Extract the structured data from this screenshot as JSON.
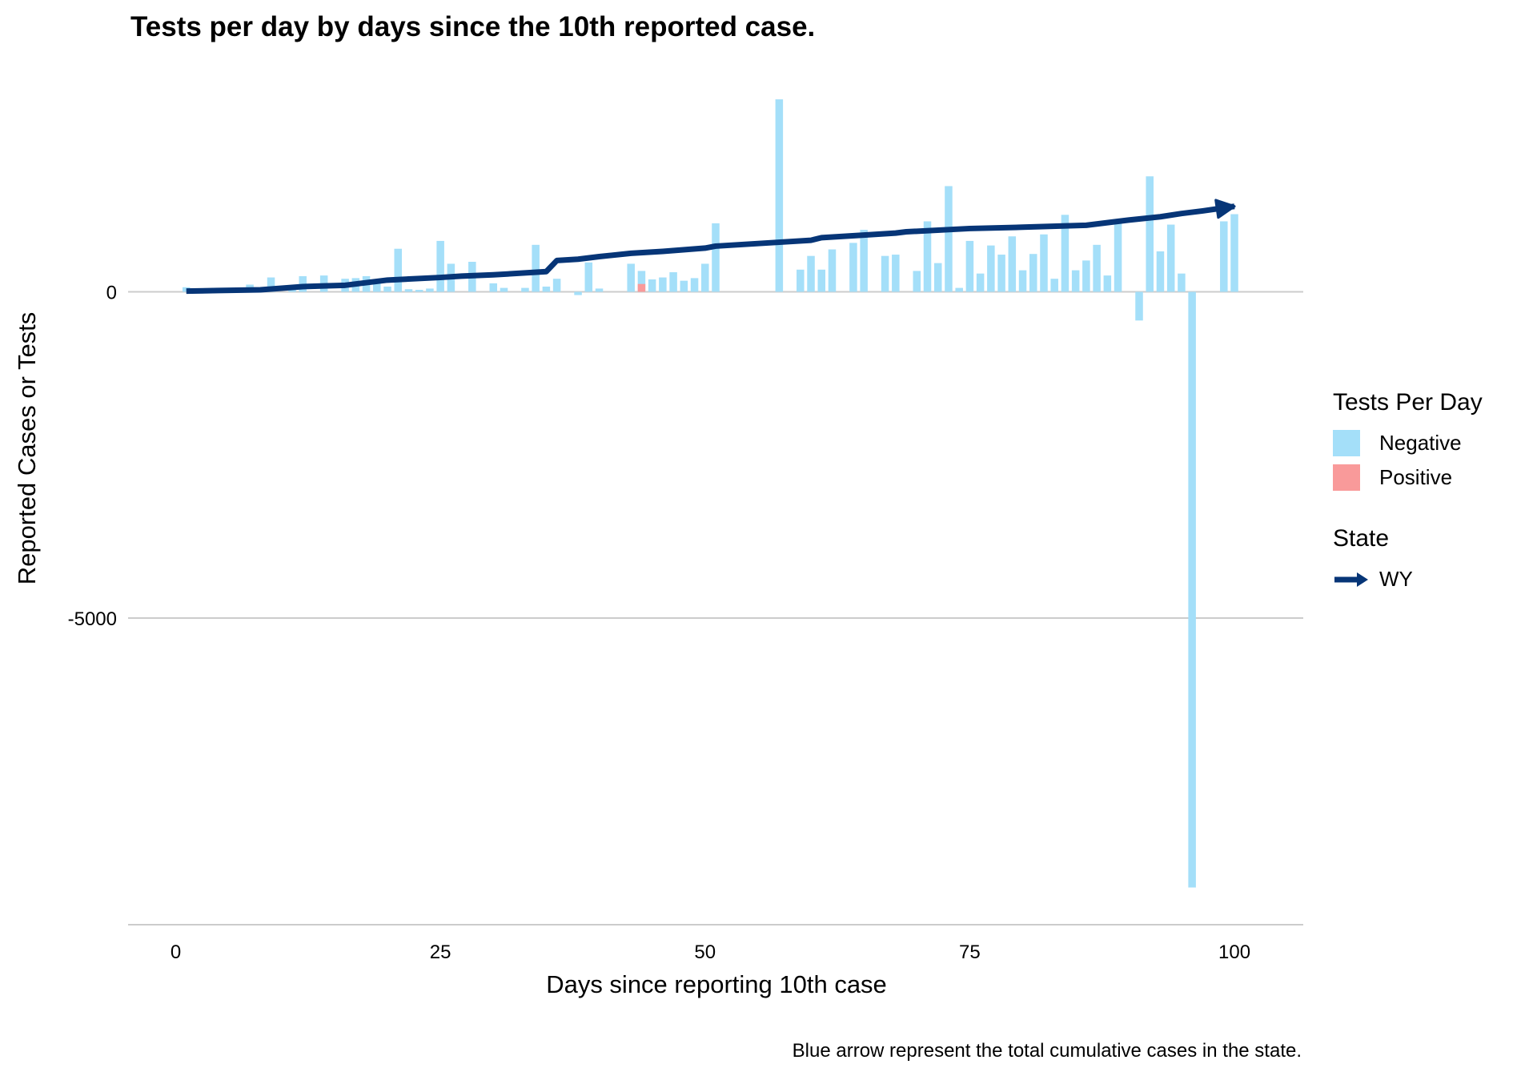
{
  "chart_data": {
    "type": "bar",
    "title": "Tests per day by days since the 10th reported case.",
    "xlabel": "Days since reporting 10th case",
    "ylabel": "Reported Cases or Tests",
    "caption": "Blue arrow represent the total cumulative cases in the state.",
    "xlim": [
      -4.5,
      106.5
    ],
    "ylim": [
      -9700,
      3000
    ],
    "x_ticks": [
      0,
      25,
      50,
      75,
      100
    ],
    "y_ticks": [
      0,
      -5000
    ],
    "grid": "horizontal",
    "legend_position": "right",
    "bar_legend_title": "Tests Per Day",
    "line_legend_title": "State",
    "colors": {
      "Negative": "#a4dff9",
      "Positive": "#f99a9a",
      "WY": "#063577"
    },
    "bar_series": [
      {
        "name": "Negative",
        "x": [
          1,
          5,
          7,
          9,
          11,
          12,
          14,
          16,
          17,
          18,
          19,
          20,
          21,
          22,
          23,
          24,
          25,
          26,
          28,
          30,
          31,
          33,
          34,
          35,
          36,
          38,
          39,
          40,
          43,
          44,
          45,
          46,
          47,
          48,
          49,
          50,
          51,
          57,
          59,
          60,
          61,
          62,
          64,
          65,
          67,
          68,
          70,
          71,
          72,
          73,
          74,
          75,
          76,
          77,
          78,
          79,
          80,
          81,
          82,
          83,
          84,
          85,
          86,
          87,
          88,
          89,
          91,
          92,
          93,
          94,
          95,
          96,
          99,
          100
        ],
        "values": [
          70,
          50,
          110,
          220,
          100,
          240,
          250,
          200,
          210,
          240,
          150,
          80,
          660,
          40,
          30,
          50,
          780,
          430,
          460,
          130,
          60,
          60,
          720,
          80,
          200,
          -50,
          450,
          50,
          430,
          320,
          190,
          220,
          300,
          170,
          210,
          430,
          1050,
          2950,
          340,
          550,
          340,
          650,
          750,
          950,
          550,
          570,
          320,
          1080,
          440,
          1620,
          60,
          780,
          280,
          710,
          570,
          850,
          330,
          580,
          880,
          200,
          1180,
          330,
          480,
          720,
          250,
          1110,
          -440,
          1770,
          620,
          1030,
          280,
          -9130,
          1080,
          1190
        ]
      },
      {
        "name": "Positive",
        "x": [
          44
        ],
        "values": [
          120
        ]
      }
    ],
    "line_series": [
      {
        "name": "WY",
        "x": [
          1,
          4,
          8,
          12,
          14,
          16,
          19,
          20,
          25,
          27,
          30,
          35,
          36,
          38,
          40,
          43,
          46,
          50,
          51,
          55,
          60,
          61,
          65,
          68,
          69,
          75,
          80,
          86,
          90,
          93,
          95,
          97,
          100
        ],
        "values": [
          10,
          20,
          30,
          80,
          90,
          100,
          160,
          180,
          220,
          240,
          260,
          310,
          480,
          500,
          540,
          590,
          620,
          670,
          700,
          740,
          790,
          830,
          870,
          900,
          920,
          970,
          990,
          1020,
          1100,
          1150,
          1200,
          1240,
          1310
        ]
      }
    ]
  }
}
